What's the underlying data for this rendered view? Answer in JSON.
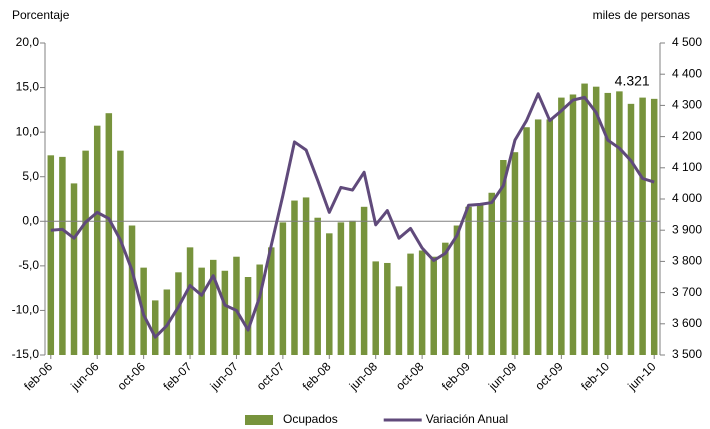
{
  "chart_data": {
    "type": "bar-line",
    "y_label": "Porcentaje",
    "y2_label": "miles de personas",
    "annotation": {
      "text": "4.321",
      "index": 52
    },
    "categories": [
      "feb-06",
      null,
      null,
      null,
      "jun-06",
      null,
      null,
      null,
      "oct-06",
      null,
      null,
      null,
      "feb-07",
      null,
      null,
      null,
      "jun-07",
      null,
      null,
      null,
      "oct-07",
      null,
      null,
      null,
      "feb-08",
      null,
      null,
      null,
      "jun-08",
      null,
      null,
      null,
      "oct-08",
      null,
      null,
      null,
      "feb-09",
      null,
      null,
      null,
      "jun-09",
      null,
      null,
      null,
      "oct-09",
      null,
      null,
      null,
      "feb-10",
      null,
      null,
      null,
      "jun-10"
    ],
    "series": [
      {
        "name": "Ocupados",
        "kind": "bar",
        "axis": "y2",
        "color": "#77933c",
        "values": [
          4140,
          4135,
          4050,
          4155,
          4235,
          4275,
          4155,
          3915,
          3780,
          3675,
          3710,
          3765,
          3845,
          3780,
          3805,
          3770,
          3815,
          3750,
          3790,
          3845,
          3925,
          3995,
          4005,
          3940,
          3890,
          3925,
          3930,
          3975,
          3800,
          3795,
          3720,
          3825,
          3835,
          3815,
          3860,
          3915,
          3975,
          3985,
          4020,
          4125,
          4150,
          4230,
          4255,
          4255,
          4325,
          4335,
          4370,
          4360,
          4340,
          4345,
          4305,
          4325,
          4321
        ]
      },
      {
        "name": "Variación Anual",
        "kind": "line",
        "axis": "y",
        "color": "#604a7b",
        "values": [
          -1.0,
          -0.9,
          -1.9,
          -0.1,
          1.0,
          0.3,
          -2.1,
          -5.5,
          -10.5,
          -13.0,
          -11.7,
          -9.6,
          -7.2,
          -8.3,
          -6.1,
          -9.4,
          -10.0,
          -12.2,
          -8.5,
          -2.7,
          2.9,
          8.9,
          8.0,
          4.6,
          1.0,
          3.8,
          3.5,
          5.5,
          -0.4,
          1.2,
          -1.9,
          -0.8,
          -3.0,
          -4.4,
          -3.6,
          -1.6,
          1.8,
          1.9,
          2.1,
          4.0,
          9.1,
          11.3,
          14.3,
          11.3,
          12.4,
          13.6,
          13.9,
          12.2,
          9.1,
          8.2,
          6.8,
          4.8,
          4.4
        ]
      }
    ],
    "ylim": [
      -15,
      20
    ],
    "yticks": [
      {
        "value": -15,
        "label": "-15,0"
      },
      {
        "value": -10,
        "label": "-10,0"
      },
      {
        "value": -5,
        "label": "-5,0"
      },
      {
        "value": 0,
        "label": "0,0"
      },
      {
        "value": 5,
        "label": "5,0"
      },
      {
        "value": 10,
        "label": "10,0"
      },
      {
        "value": 15,
        "label": "15,0"
      },
      {
        "value": 20,
        "label": "20,0"
      }
    ],
    "y2lim": [
      3500,
      4500
    ],
    "y2ticks": [
      {
        "value": 3500,
        "label": "3 500"
      },
      {
        "value": 3600,
        "label": "3 600"
      },
      {
        "value": 3700,
        "label": "3 700"
      },
      {
        "value": 3800,
        "label": "3 800"
      },
      {
        "value": 3900,
        "label": "3 900"
      },
      {
        "value": 4000,
        "label": "4 000"
      },
      {
        "value": 4100,
        "label": "4 100"
      },
      {
        "value": 4200,
        "label": "4 200"
      },
      {
        "value": 4300,
        "label": "4 300"
      },
      {
        "value": 4400,
        "label": "4 400"
      },
      {
        "value": 4500,
        "label": "4 500"
      }
    ],
    "legend": "bottom"
  }
}
